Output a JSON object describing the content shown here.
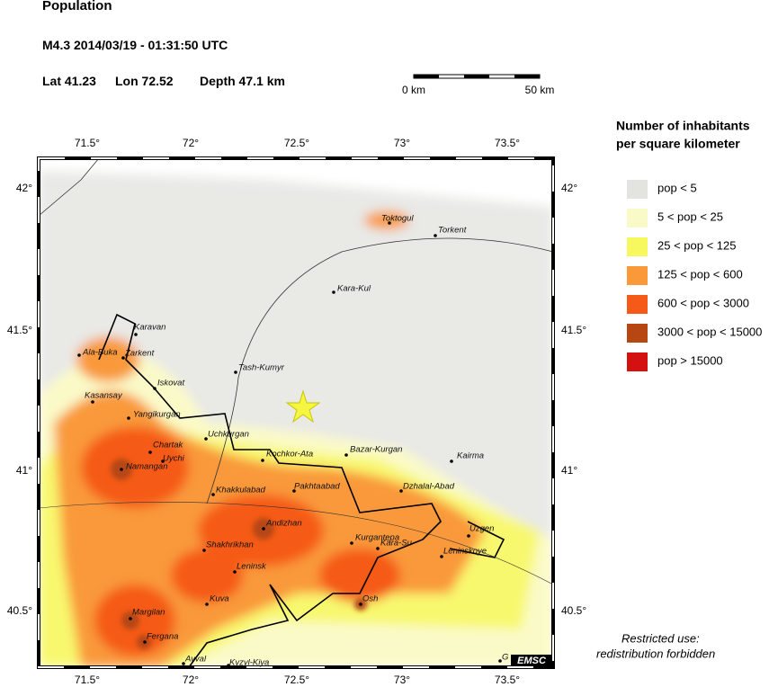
{
  "header": {
    "title": "Population",
    "event": "M4.3  2014/03/19 - 01:31:50 UTC",
    "lat": "Lat 41.23",
    "lon": "Lon 72.52",
    "depth": "Depth  47.1 km"
  },
  "scale_bar": {
    "start": "0 km",
    "end": "50 km"
  },
  "legend": {
    "title_lines": [
      "Number of inhabitants",
      "per square kilometer"
    ],
    "items": [
      {
        "label": "pop < 5",
        "color": "#e3e3e0"
      },
      {
        "label": "5 < pop < 25",
        "color": "#fafac8"
      },
      {
        "label": "25 < pop < 125",
        "color": "#f7f75e"
      },
      {
        "label": "125 < pop < 600",
        "color": "#f9993a"
      },
      {
        "label": "600 < pop < 3000",
        "color": "#f55a18"
      },
      {
        "label": "3000 < pop < 15000",
        "color": "#b64712"
      },
      {
        "label": "pop > 15000",
        "color": "#d41010"
      }
    ]
  },
  "map": {
    "lon_ticks": [
      "71.5°",
      "72°",
      "72.5°",
      "73°",
      "73.5°"
    ],
    "lat_ticks": [
      "42°",
      "41.5°",
      "41°",
      "40.5°"
    ],
    "cities": [
      "Toktogul",
      "Torkent",
      "Kara-Kul",
      "Karavan",
      "Ala-Buka",
      "Zarkent",
      "Iskovat",
      "Tash-Kumyr",
      "Kasansay",
      "Yangikurgan",
      "Uchkurgan",
      "Chartak",
      "Uychi",
      "Namangan",
      "Kochkor-Ata",
      "Bazar-Kurgan",
      "Kairma",
      "Khakkulabad",
      "Pakhtaabad",
      "Dzhalal-Abad",
      "Andizhan",
      "Uzgen",
      "Shakhrikhan",
      "Kurgantepa",
      "Kara-Su",
      "Leninskoye",
      "Leninsk",
      "Kuva",
      "Osh",
      "Margilan",
      "Fergana",
      "Avval",
      "Kyzyl-Kiya",
      "G"
    ],
    "credit": "EMSC"
  },
  "notice": [
    "Restricted use:",
    "redistribution forbidden"
  ]
}
